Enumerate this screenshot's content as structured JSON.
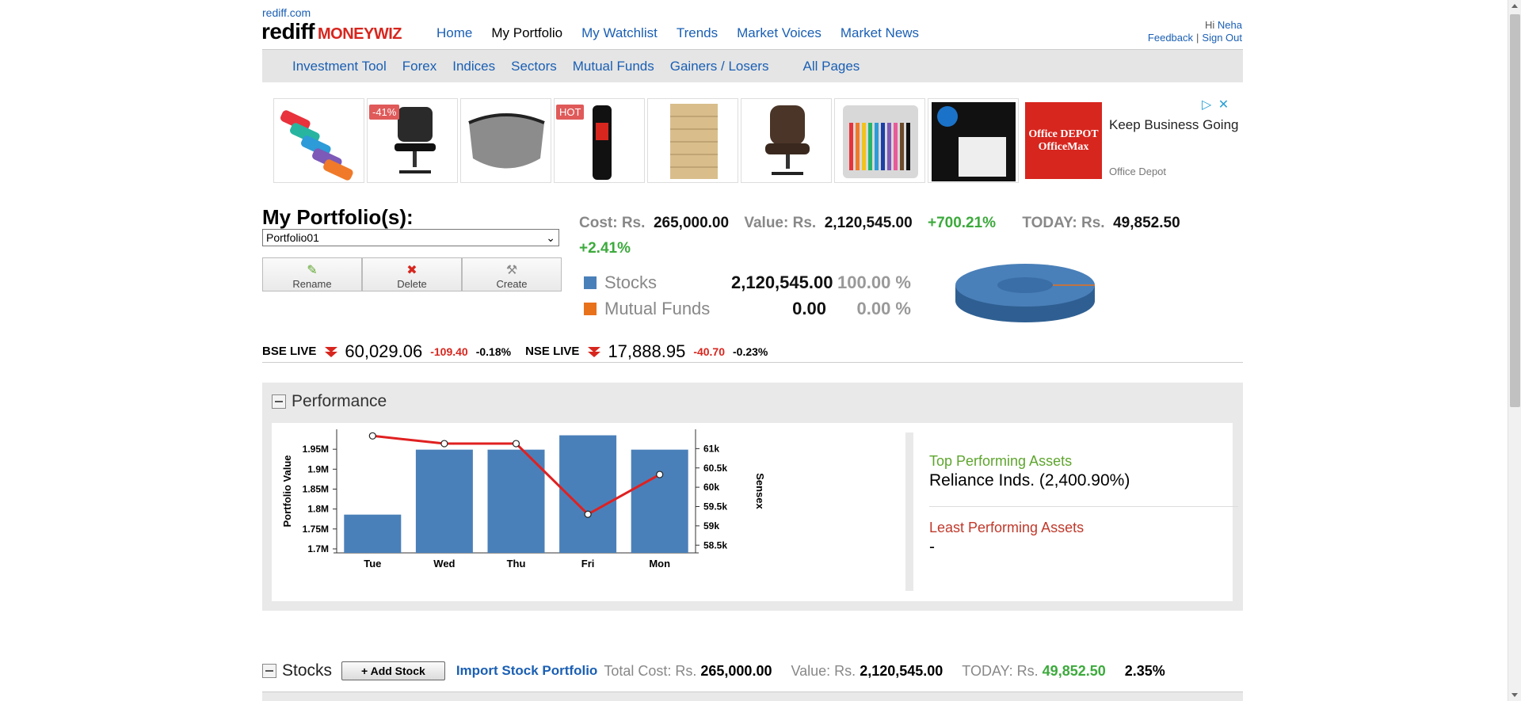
{
  "header": {
    "site": "rediff.com",
    "logo_main": "rediff",
    "logo_sub": "MONEYWIZ",
    "nav": [
      "Home",
      "My Portfolio",
      "My Watchlist",
      "Trends",
      "Market Voices",
      "Market News"
    ],
    "active_nav": "My Portfolio",
    "greeting": "Hi",
    "user": "Neha",
    "feedback": "Feedback",
    "separator": "|",
    "signout": "Sign Out"
  },
  "subnav": [
    "Investment Tool",
    "Forex",
    "Indices",
    "Sectors",
    "Mutual Funds",
    "Gainers / Losers",
    "All Pages"
  ],
  "ad": {
    "tags": [
      "-41%",
      "HOT"
    ],
    "brand_logo": "Office DEPOT OfficeMax",
    "headline": "Keep Business Going",
    "sponsor": "Office Depot",
    "icons": [
      "adchoices-icon",
      "close-icon"
    ]
  },
  "portfolio": {
    "title": "My Portfolio(s):",
    "selected": "Portfolio01",
    "actions": [
      {
        "label": "Rename",
        "icon": "pencil-icon"
      },
      {
        "label": "Delete",
        "icon": "cross-icon"
      },
      {
        "label": "Create",
        "icon": "tools-icon"
      }
    ],
    "cost_label": "Cost: Rs.",
    "cost": "265,000.00",
    "value_label": "Value: Rs.",
    "value": "2,120,545.00",
    "gain_pct": "+700.21%",
    "today_label": "TODAY: Rs.",
    "today": "49,852.50",
    "today_pct": "+2.41%",
    "allocation": [
      {
        "name": "Stocks",
        "amount": "2,120,545.00",
        "pct": "100.00 %",
        "color": "#4a80b9"
      },
      {
        "name": "Mutual Funds",
        "amount": "0.00",
        "pct": "0.00 %",
        "color": "#e8711c"
      }
    ]
  },
  "live": {
    "bse_label": "BSE LIVE",
    "bse_value": "60,029.06",
    "bse_change": "-109.40",
    "bse_pct": "-0.18%",
    "nse_label": "NSE LIVE",
    "nse_value": "17,888.95",
    "nse_change": "-40.70",
    "nse_pct": "-0.23%"
  },
  "performance": {
    "title": "Performance",
    "top_label": "Top Performing Assets",
    "top_value": "Reliance Inds. (2,400.90%)",
    "least_label": "Least Performing Assets",
    "least_value": "-"
  },
  "chart_data": {
    "type": "bar",
    "categories": [
      "Tue",
      "Wed",
      "Thu",
      "Fri",
      "Mon"
    ],
    "series": [
      {
        "name": "Portfolio Value",
        "type": "bar",
        "values": [
          1.786,
          1.949,
          1.949,
          1.985,
          1.949
        ]
      },
      {
        "name": "Sensex",
        "type": "line",
        "values": [
          61330,
          61130,
          61130,
          59300,
          60330
        ]
      }
    ],
    "ylabel": "Portfolio Value",
    "y2label": "Sensex",
    "yticks": [
      "1.7M",
      "1.75M",
      "1.8M",
      "1.85M",
      "1.9M",
      "1.95M"
    ],
    "y2ticks": [
      "58.5k",
      "59k",
      "59.5k",
      "60k",
      "60.5k",
      "61k"
    ],
    "ylim": [
      1.69,
      2.0
    ],
    "y2lim": [
      58.3,
      61.5
    ],
    "bar_color": "#4a80b9",
    "line_color": "#e02020"
  },
  "stocks": {
    "title": "Stocks",
    "add_label": "+ Add Stock",
    "import_label": "Import Stock Portfolio",
    "total_cost_label": "Total Cost: Rs.",
    "total_cost": "265,000.00",
    "value_label": "Value: Rs.",
    "value": "2,120,545.00",
    "today_label": "TODAY: Rs.",
    "today": "49,852.50",
    "today_pct": "2.35%"
  }
}
